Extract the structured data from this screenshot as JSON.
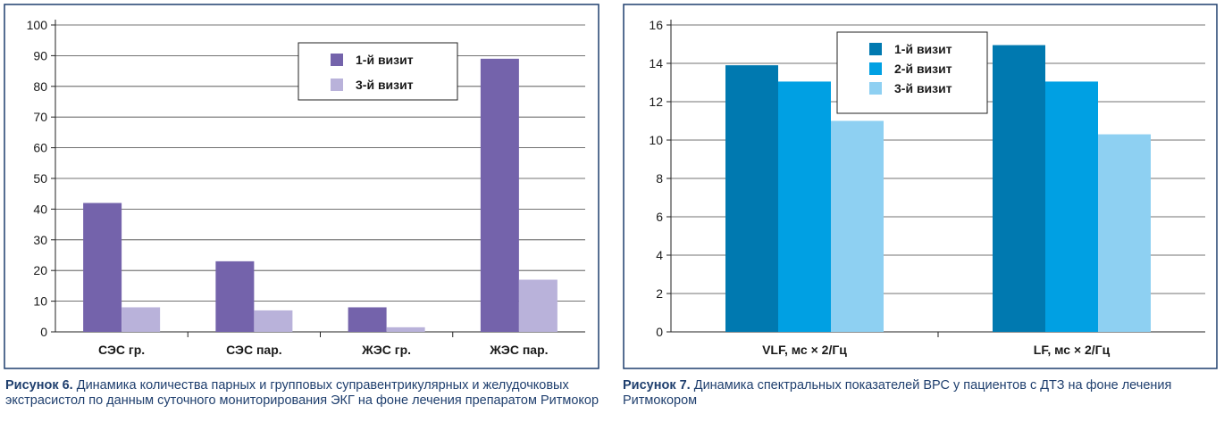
{
  "figures": [
    {
      "caption_label": "Рисунок 6.",
      "caption_text": "Динамика количества парных и групповых суправентрикулярных и желудочковых экстрасистол по данным суточного мониторирования ЭКГ на фоне лечения препаратом Ритмокор"
    },
    {
      "caption_label": "Рисунок 7.",
      "caption_text": "Динамика спектральных показателей ВРС у пациентов с ДТЗ на фоне лечения Ритмокором"
    }
  ],
  "chart_data": [
    {
      "type": "bar",
      "categories": [
        "СЭС гр.",
        "СЭС пар.",
        "ЖЭС гр.",
        "ЖЭС пар."
      ],
      "series": [
        {
          "name": "1-й визит",
          "values": [
            42,
            23,
            8,
            89
          ],
          "color": "#7463ab"
        },
        {
          "name": "3-й визит",
          "values": [
            8,
            7,
            1.5,
            17
          ],
          "color": "#b9b2da"
        }
      ],
      "ylim": [
        0,
        100
      ],
      "yticks": [
        0,
        10,
        20,
        30,
        40,
        50,
        60,
        70,
        80,
        90,
        100
      ],
      "grid": true,
      "legend_position": "top-right",
      "border_color": "#1f3f6e"
    },
    {
      "type": "bar",
      "categories": [
        "VLF, мс × 2/Гц",
        "LF, мс × 2/Гц"
      ],
      "series": [
        {
          "name": "1-й визит",
          "values": [
            13.9,
            14.95
          ],
          "color": "#0079b0"
        },
        {
          "name": "2-й визит",
          "values": [
            13.05,
            13.05
          ],
          "color": "#00a0e3"
        },
        {
          "name": "3-й визит",
          "values": [
            11,
            10.3
          ],
          "color": "#8ed0f2"
        }
      ],
      "ylim": [
        0,
        16
      ],
      "yticks": [
        0,
        2,
        4,
        6,
        8,
        10,
        12,
        14,
        16
      ],
      "grid": true,
      "legend_position": "top-center",
      "border_color": "#1f3f6e"
    }
  ]
}
